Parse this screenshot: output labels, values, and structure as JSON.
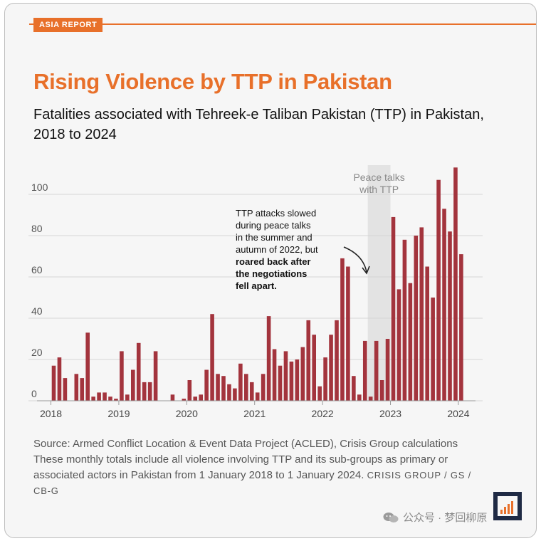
{
  "header": {
    "tag": "ASIA REPORT"
  },
  "title": "Rising Violence by TTP in Pakistan",
  "subtitle": "Fatalities associated with Tehreek-e Taliban Pakistan (TTP) in Pakistan, 2018 to 2024",
  "chart_data": {
    "type": "bar",
    "title": "Rising Violence by TTP in Pakistan",
    "subtitle": "Fatalities associated with Tehreek-e Taliban Pakistan (TTP) in Pakistan, 2018 to 2024",
    "xlabel": "",
    "ylabel": "",
    "ylim": [
      0,
      110
    ],
    "y_ticks": [
      0,
      20,
      40,
      60,
      80,
      100
    ],
    "x_ticks": [
      "2018",
      "2019",
      "2020",
      "2021",
      "2022",
      "2023",
      "2024"
    ],
    "grid": true,
    "bar_color": "#a3343d",
    "start": "2018-01",
    "values": [
      17,
      21,
      11,
      0,
      13,
      11,
      33,
      2,
      4,
      4,
      2,
      1,
      24,
      3,
      15,
      28,
      9,
      9,
      24,
      0,
      0,
      3,
      0,
      1,
      10,
      2,
      3,
      15,
      42,
      13,
      12,
      8,
      6,
      18,
      13,
      9,
      4,
      13,
      41,
      25,
      17,
      24,
      19,
      20,
      26,
      39,
      32,
      7,
      21,
      32,
      39,
      69,
      65,
      12,
      3,
      29,
      2,
      29,
      10,
      30,
      89,
      54,
      78,
      57,
      80,
      84,
      65,
      50,
      107,
      93,
      82,
      113,
      71
    ],
    "shaded_periods": [
      {
        "from_month_index": 56,
        "to_month_index": 59,
        "label": "Peace talks with TTP"
      }
    ],
    "annotation": {
      "normal": "TTP attacks slowed during peace talks in the summer and autumn of 2022, but",
      "bold": "roared back after the negotiations fell apart."
    }
  },
  "source": {
    "text": "Source: Armed Conflict Location & Event Data Project (ACLED), Crisis Group calculations These monthly totals include all violence involving TTP and its sub-groups as primary or associated actors in Pakistan from 1 January 2018 to 1 January 2024.",
    "org": "CRISIS GROUP / GS / CB-G"
  },
  "watermark": "公众号 · 梦回柳原",
  "colors": {
    "accent": "#e8702a",
    "bar": "#a3343d",
    "shade": "#e3e3e3",
    "grid": "#d6d6d6"
  },
  "icons": {
    "logo": "crisis-group-logo",
    "watermark": "wechat-icon"
  }
}
